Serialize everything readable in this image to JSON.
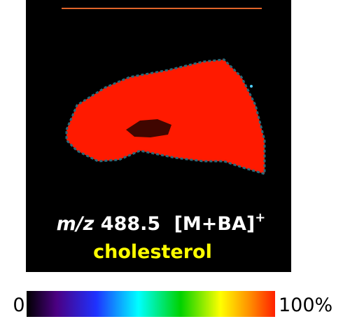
{
  "image": {
    "label": {
      "mz_prefix": "m/z",
      "mz_value": "488.5",
      "ion": "[M+BA]",
      "charge": "+"
    },
    "compound": "cholesterol"
  },
  "colorbar": {
    "min_label": "0",
    "max_label": "100%"
  }
}
